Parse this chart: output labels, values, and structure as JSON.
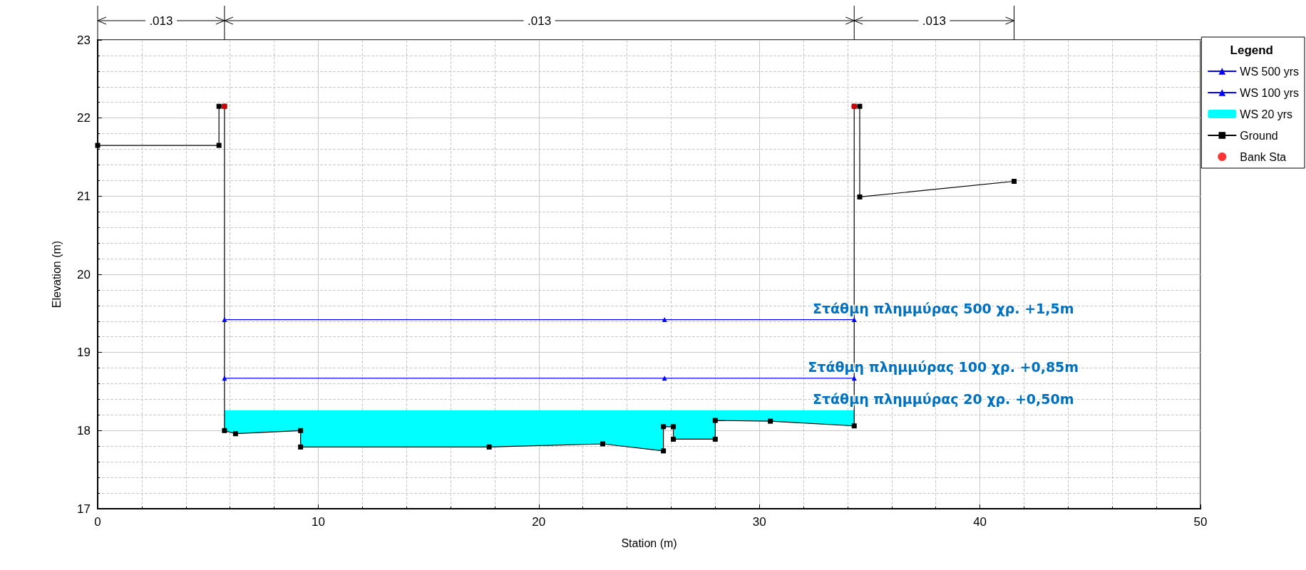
{
  "chart_data": {
    "type": "line",
    "xlabel": "Station (m)",
    "ylabel": "Elevation (m)",
    "legend_title": "Legend",
    "xlim": [
      0,
      50
    ],
    "xticks": [
      0,
      10,
      20,
      30,
      40,
      50
    ],
    "ylim": [
      17,
      23
    ],
    "yticks": [
      17,
      18,
      19,
      20,
      21,
      22,
      23
    ],
    "grid": true,
    "legend": "right",
    "series": [
      {
        "name": "WS 500 yrs",
        "color": "#0000ff",
        "marker": "triangle",
        "x": [
          5.75,
          25.7,
          34.3
        ],
        "values": [
          19.42,
          19.42,
          19.42
        ]
      },
      {
        "name": "WS 100 yrs",
        "color": "#0000ff",
        "marker": "triangle",
        "x": [
          5.75,
          25.7,
          34.3
        ],
        "values": [
          18.67,
          18.67,
          18.67
        ]
      },
      {
        "name": "WS 20 yrs",
        "type": "area",
        "color": "#00ffff",
        "x": [
          5.75,
          6.25,
          9.2,
          9.2,
          17.75,
          22.9,
          25.65,
          25.65,
          26.1,
          26.1,
          28.0,
          28.0,
          30.5,
          34.3
        ],
        "values": [
          18.26,
          18.26,
          18.26,
          18.26,
          18.26,
          18.26,
          18.26,
          18.26,
          18.26,
          18.26,
          18.26,
          18.26,
          18.26,
          18.26
        ]
      },
      {
        "name": "Ground",
        "color": "#000000",
        "marker": "square",
        "x": [
          0,
          5.5,
          5.5,
          5.75,
          5.75,
          6.25,
          9.2,
          9.2,
          17.75,
          22.9,
          25.65,
          25.65,
          26.1,
          26.1,
          28.0,
          28.0,
          30.5,
          34.3,
          34.3,
          34.55,
          34.55,
          41.55
        ],
        "values": [
          21.65,
          21.65,
          22.15,
          22.15,
          18.0,
          17.96,
          18.0,
          17.79,
          17.79,
          17.83,
          17.74,
          18.05,
          18.05,
          17.89,
          17.89,
          18.13,
          18.12,
          18.06,
          22.15,
          22.15,
          20.99,
          21.19
        ]
      },
      {
        "name": "Bank Sta",
        "type": "scatter",
        "color": "#ff0000",
        "marker": "circle",
        "x": [
          5.75,
          34.3
        ],
        "values": [
          22.15,
          22.15
        ]
      }
    ],
    "annotations": [
      ".013",
      ".013",
      ".013",
      "Στάθμη πλημμύρας 500 χρ. +1,5m",
      "Στάθμη πλημμύρας 100 χρ. +0,85m",
      "Στάθμη πλημμύρας 20 χρ. +0,50m"
    ]
  }
}
